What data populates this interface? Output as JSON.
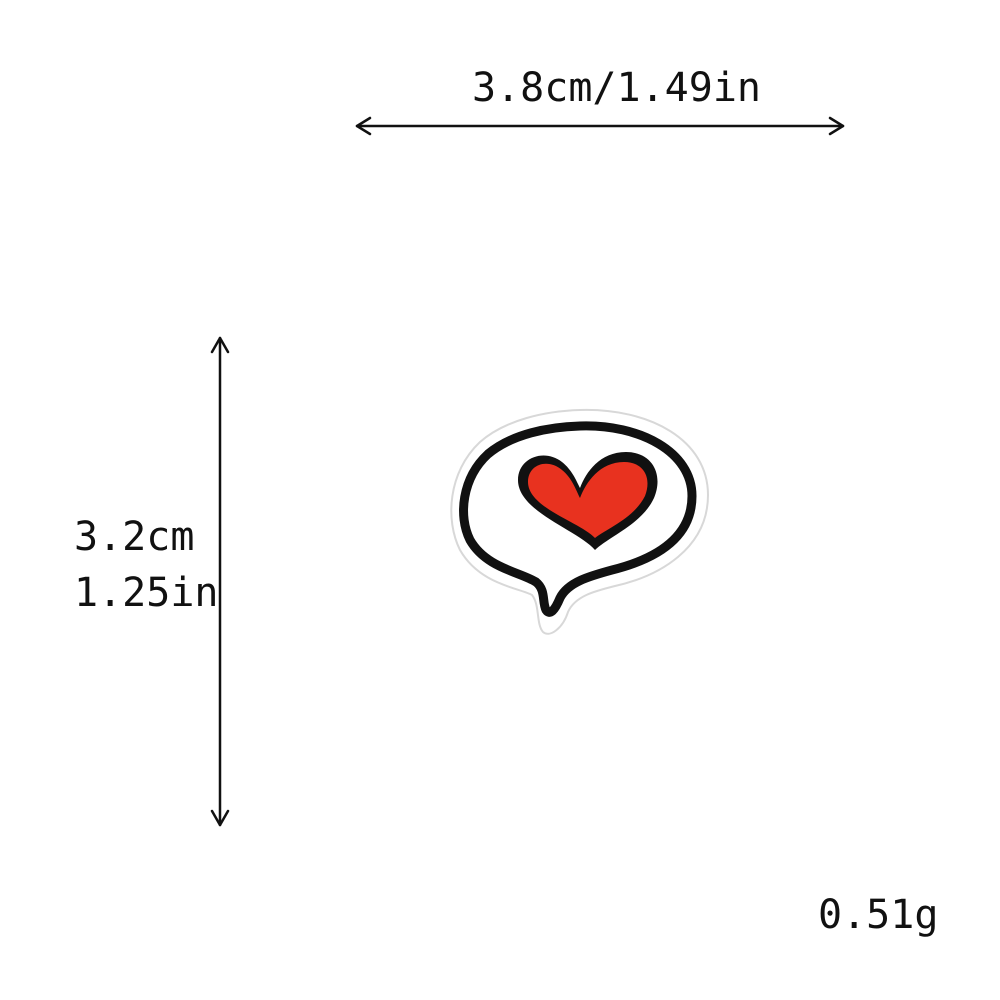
{
  "dimensions": {
    "width_label": "3.8cm/1.49in",
    "height_label_cm": "3.2cm",
    "height_label_in": "1.25in",
    "weight_label": "0.51g"
  },
  "product": {
    "icon": "speech-bubble-heart-patch",
    "colors": {
      "heart": "#e8321f",
      "outline": "#111111",
      "bubble_fill": "#ffffff"
    }
  }
}
